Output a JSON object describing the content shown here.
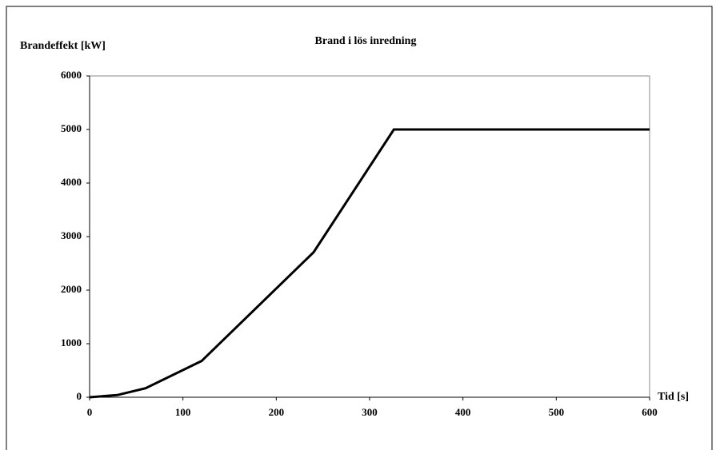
{
  "chart_data": {
    "type": "line",
    "title": "Brand i lös inredning",
    "y_label": "Brandeffekt [kW]",
    "x_label": "Tid [s]",
    "x": [
      0,
      30,
      60,
      120,
      240,
      326,
      600
    ],
    "series": [
      {
        "name": "Brandeffekt",
        "color": "#000000",
        "values": [
          0,
          42,
          169,
          677,
          2707,
          5000,
          5000
        ]
      }
    ],
    "xlim": [
      0,
      600
    ],
    "xticks": [
      0,
      100,
      200,
      300,
      400,
      500,
      600
    ],
    "ylim": [
      0,
      6000
    ],
    "yticks": [
      0,
      1000,
      2000,
      3000,
      4000,
      5000,
      6000
    ],
    "grid": false
  }
}
